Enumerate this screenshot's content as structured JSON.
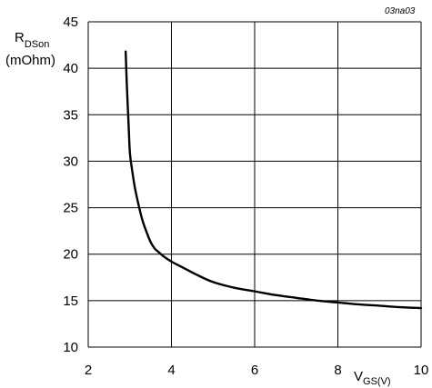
{
  "chart_data": {
    "type": "line",
    "figure_id": "03na03",
    "ylabel": {
      "main": "R",
      "sub": "DSon",
      "unit": "(mOhm)"
    },
    "xlabel": {
      "main": "V",
      "sub": "GS(V)"
    },
    "xlim": [
      2,
      10
    ],
    "ylim": [
      10,
      45
    ],
    "x_ticks": [
      2,
      4,
      6,
      8,
      10
    ],
    "y_ticks": [
      10,
      15,
      20,
      25,
      30,
      35,
      40,
      45
    ],
    "x_grid": [
      2,
      4,
      6,
      8,
      10
    ],
    "y_grid": [
      10,
      15,
      20,
      25,
      30,
      35,
      40,
      45
    ],
    "grid": true,
    "line_color": "#000000",
    "series": [
      {
        "x": [
          2.9,
          2.93,
          2.97,
          3.0,
          3.05,
          3.12,
          3.2,
          3.3,
          3.4,
          3.5,
          3.6,
          3.7,
          3.8,
          4.0,
          4.3,
          4.6,
          5.0,
          5.5,
          6.0,
          6.5,
          7.0,
          7.5,
          8.0,
          8.5,
          9.0,
          9.5,
          10.0
        ],
        "y": [
          41.8,
          38.0,
          34.0,
          31.0,
          29.2,
          27.2,
          25.5,
          23.7,
          22.4,
          21.3,
          20.6,
          20.2,
          19.8,
          19.2,
          18.5,
          17.8,
          17.0,
          16.4,
          16.0,
          15.6,
          15.3,
          15.0,
          14.8,
          14.6,
          14.45,
          14.3,
          14.2
        ]
      }
    ]
  }
}
